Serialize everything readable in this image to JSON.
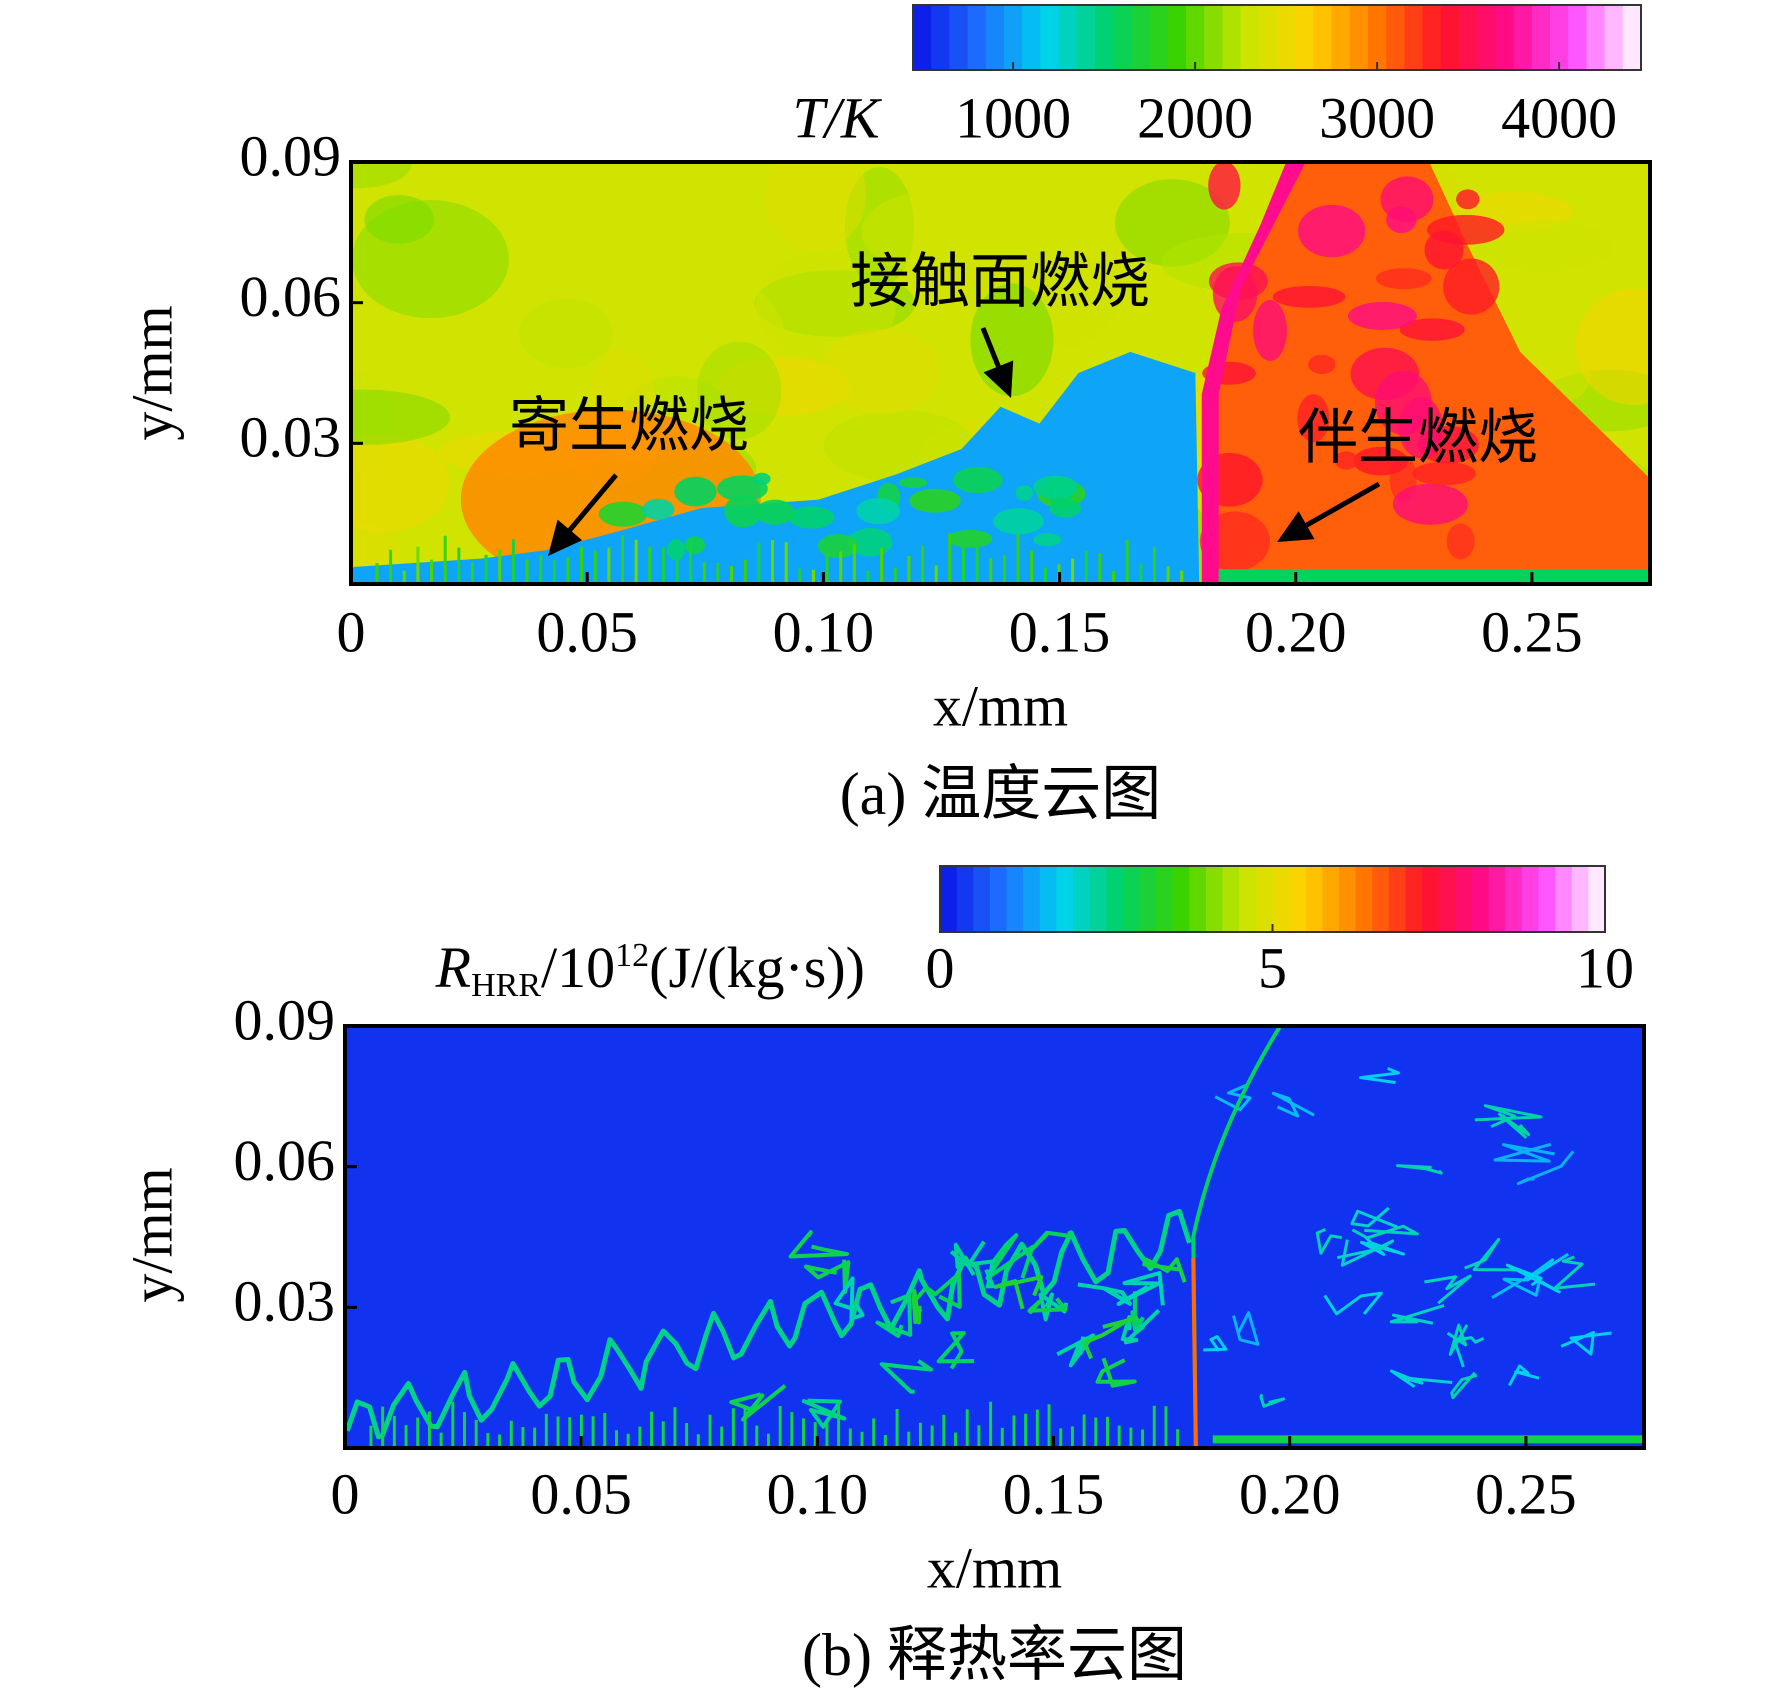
{
  "chart_data": [
    {
      "type": "heatmap",
      "caption": "(a) 温度云图",
      "xlabel": "x/mm",
      "ylabel": "y/mm",
      "xlim": [
        0,
        0.275
      ],
      "ylim": [
        0,
        0.09
      ],
      "xticks": [
        0,
        0.05,
        {
          "value": 0.1,
          "label": "0.10"
        },
        0.15,
        {
          "value": 0.2,
          "label": "0.20"
        },
        0.25
      ],
      "yticks": [
        0.03,
        0.06,
        0.09
      ],
      "colorbar": {
        "label": "T/K",
        "lim": [
          450,
          4450
        ],
        "ticks": [
          1000,
          2000,
          3000,
          4000
        ]
      },
      "colormap": [
        "#0a14e6",
        "#1e6eff",
        "#00d2f0",
        "#00d264",
        "#3cd200",
        "#c8e600",
        "#ffd200",
        "#ff7800",
        "#ff1428",
        "#ff0a8c",
        "#ff50ff",
        "#ffffff"
      ],
      "annotations": [
        "寄生燃烧",
        "接触面燃烧",
        "伴生燃烧"
      ]
    },
    {
      "type": "heatmap",
      "caption": "(b) 释热率云图",
      "xlabel": "x/mm",
      "ylabel": "y/mm",
      "xlim": [
        0,
        0.275
      ],
      "ylim": [
        0,
        0.09
      ],
      "xticks": [
        0,
        0.05,
        {
          "value": 0.1,
          "label": "0.10"
        },
        0.15,
        {
          "value": 0.2,
          "label": "0.20"
        },
        0.25
      ],
      "yticks": [
        0.03,
        0.06,
        0.09
      ],
      "colorbar": {
        "label_parts": [
          "R",
          "HRR",
          "/10",
          "12",
          "(J/(kg·s))"
        ],
        "lim": [
          0,
          10
        ],
        "ticks": [
          0,
          5,
          10
        ]
      },
      "colormap": [
        "#0a14e6",
        "#1e6eff",
        "#00d2f0",
        "#00d264",
        "#3cd200",
        "#c8e600",
        "#ffd200",
        "#ff7800",
        "#ff1428",
        "#ff0a8c",
        "#ff50ff",
        "#ffffff"
      ]
    }
  ]
}
